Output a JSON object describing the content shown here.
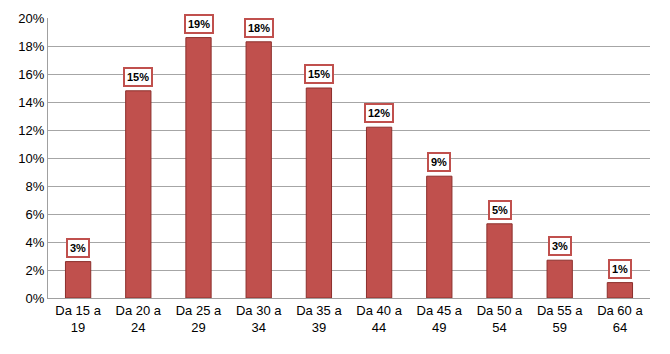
{
  "chart_data": {
    "type": "bar",
    "categories": [
      "Da 15 a 19",
      "Da 20 a 24",
      "Da 25 a 29",
      "Da 30 a 34",
      "Da 35 a 39",
      "Da 40 a 44",
      "Da 45 a 49",
      "Da 50 a 54",
      "Da 55 a 59",
      "Da 60 a 64"
    ],
    "values": [
      2.6,
      14.8,
      18.6,
      18.3,
      15.0,
      12.2,
      8.7,
      5.3,
      2.7,
      1.1
    ],
    "value_labels": [
      "3%",
      "15%",
      "19%",
      "18%",
      "15%",
      "12%",
      "9%",
      "5%",
      "3%",
      "1%"
    ],
    "color": "#c0504d",
    "ylim": [
      0,
      20
    ],
    "yticks": [
      {
        "value": 0,
        "label": "0%"
      },
      {
        "value": 2,
        "label": "2%"
      },
      {
        "value": 4,
        "label": "4%"
      },
      {
        "value": 6,
        "label": "6%"
      },
      {
        "value": 8,
        "label": "8%"
      },
      {
        "value": 10,
        "label": "10%"
      },
      {
        "value": 12,
        "label": "12%"
      },
      {
        "value": 14,
        "label": "14%"
      },
      {
        "value": 16,
        "label": "16%"
      },
      {
        "value": 18,
        "label": "18%"
      },
      {
        "value": 20,
        "label": "20%"
      }
    ],
    "grid": true,
    "data_labels": true
  }
}
